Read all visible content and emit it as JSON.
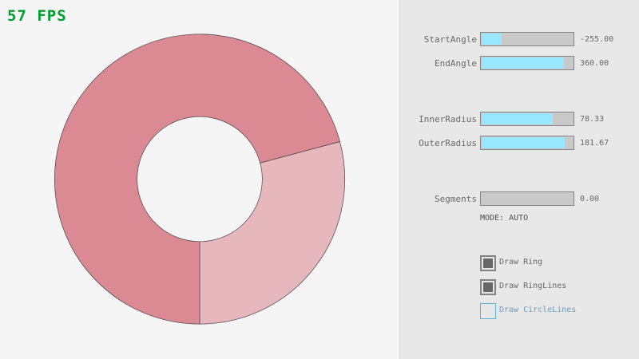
{
  "fps": "57 FPS",
  "ring": {
    "inner_radius": 78.33,
    "outer_radius": 181.67,
    "start_angle": -255,
    "end_angle": 360,
    "color_dark": "#db8a93",
    "color_light": "#e6b7bd"
  },
  "controls": {
    "sliders": [
      {
        "label": "StartAngle",
        "value": "-255.00",
        "fraction": 0.217
      },
      {
        "label": "EndAngle",
        "value": "360.00",
        "fraction": 0.9
      },
      {
        "label": "InnerRadius",
        "value": "78.33",
        "fraction": 0.783
      },
      {
        "label": "OuterRadius",
        "value": "181.67",
        "fraction": 0.908
      },
      {
        "label": "Segments",
        "value": "0.00",
        "fraction": 0
      }
    ],
    "mode": "MODE: AUTO",
    "checkboxes": [
      {
        "label": "Draw Ring",
        "checked": true
      },
      {
        "label": "Draw RingLines",
        "checked": true
      },
      {
        "label": "Draw CircleLines",
        "checked": false
      }
    ]
  }
}
